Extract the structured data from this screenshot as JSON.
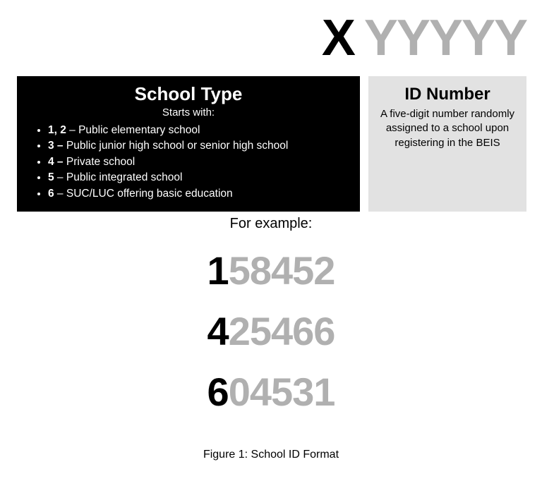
{
  "header": {
    "prefix": "X",
    "suffix": "YYYYY",
    "prefix_color": "#000000",
    "suffix_color": "#b0b0b0",
    "fontsize": 72,
    "weight": 900
  },
  "school_type_box": {
    "title": "School Type",
    "subtitle": "Starts with:",
    "bg_color": "#000000",
    "text_color": "#ffffff",
    "title_fontsize": 26,
    "item_fontsize": 15.5,
    "items": [
      {
        "bold": "1, 2",
        "sep": " – ",
        "text": "Public elementary school"
      },
      {
        "bold": "3 –",
        "sep": " ",
        "text": "Public junior high school or senior high school"
      },
      {
        "bold": "4 –",
        "sep": " ",
        "text": "Private school"
      },
      {
        "bold": "5",
        "sep": " – ",
        "text": "Public integrated school"
      },
      {
        "bold": "6",
        "sep": " – ",
        "text": "SUC/LUC offering basic education"
      }
    ]
  },
  "id_number_box": {
    "title": "ID Number",
    "description": "A five-digit number randomly assigned to a school upon registering in the BEIS",
    "bg_color": "#e2e2e2",
    "text_color": "#000000",
    "title_fontsize": 24,
    "desc_fontsize": 15
  },
  "for_example_label": "For example:",
  "examples": {
    "fontsize": 56,
    "weight": 900,
    "prefix_color": "#000000",
    "rest_color": "#b0b0b0",
    "ids": [
      {
        "prefix": "1",
        "rest": "58452"
      },
      {
        "prefix": "4",
        "rest": "25466"
      },
      {
        "prefix": "6",
        "rest": "04531"
      }
    ]
  },
  "caption": "Figure 1: School ID Format"
}
